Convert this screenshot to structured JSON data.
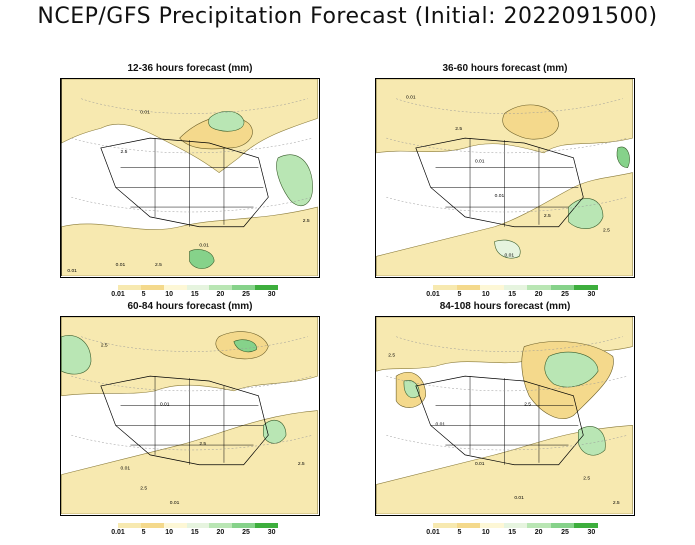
{
  "title": "NCEP/GFS Precipitation Forecast (Initial: 2022091500)",
  "legend": {
    "labels": [
      "0.01",
      "5",
      "10",
      "15",
      "20",
      "25",
      "30"
    ],
    "colors": [
      "#f7e9b0",
      "#f4d98c",
      "#fdf7d6",
      "#e6f4df",
      "#b9e6b4",
      "#86d28a",
      "#3dae3d"
    ]
  },
  "panels": [
    {
      "title": "12-36 hours forecast (mm)",
      "contour_labels": [
        "0.01",
        "2.5",
        "0.01",
        "2.5",
        "0.01",
        "2.5",
        "0.01"
      ]
    },
    {
      "title": "36-60 hours forecast (mm)",
      "contour_labels": [
        "0.01",
        "2.5",
        "0.01",
        "2.5",
        "0.01",
        "2.5",
        "0.01"
      ]
    },
    {
      "title": "60-84 hours forecast (mm)",
      "contour_labels": [
        "2.5",
        "0.01",
        "2.5",
        "0.01",
        "2.5",
        "0.01",
        "2.5"
      ]
    },
    {
      "title": "84-108 hours forecast (mm)",
      "contour_labels": [
        "2.5",
        "0.01",
        "2.5",
        "0.01",
        "2.5",
        "0.01",
        "2.5"
      ]
    }
  ]
}
